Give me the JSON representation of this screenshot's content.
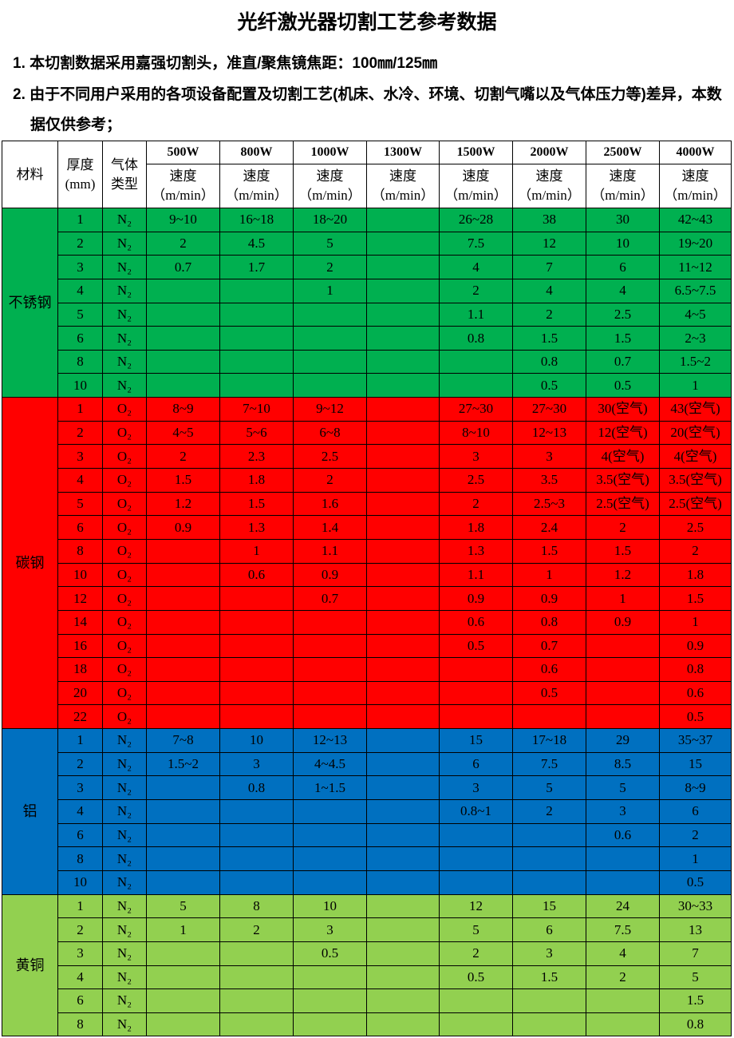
{
  "title": "光纤激光器切割工艺参考数据",
  "notes": [
    "1. 本切割数据采用嘉强切割头，准直/聚焦镜焦距：100㎜/125㎜",
    "2. 由于不同用户采用的各项设备配置及切割工艺(机床、水冷、环境、切割气嘴以及气体压力等)差异，本数据仅供参考；"
  ],
  "table": {
    "header": {
      "material": "材料",
      "thickness": [
        "厚度",
        "(mm)"
      ],
      "gas": [
        "气体",
        "类型"
      ],
      "powers": [
        "500W",
        "800W",
        "1000W",
        "1300W",
        "1500W",
        "2000W",
        "2500W",
        "4000W"
      ],
      "speed": [
        "速度",
        "（m/min）"
      ]
    },
    "groups": [
      {
        "material": "不锈钢",
        "color": "#00b050",
        "rows": [
          {
            "thickness": 1,
            "gas": "N₂",
            "speeds": [
              "9~10",
              "16~18",
              "18~20",
              null,
              "26~28",
              38,
              30,
              "42~43"
            ]
          },
          {
            "thickness": 2,
            "gas": "N₂",
            "speeds": [
              2,
              4.5,
              5,
              null,
              7.5,
              12,
              10,
              "19~20"
            ]
          },
          {
            "thickness": 3,
            "gas": "N₂",
            "speeds": [
              0.7,
              1.7,
              2,
              null,
              4,
              7,
              6,
              "11~12"
            ]
          },
          {
            "thickness": 4,
            "gas": "N₂",
            "speeds": [
              null,
              null,
              1,
              null,
              2,
              4,
              4,
              "6.5~7.5"
            ]
          },
          {
            "thickness": 5,
            "gas": "N₂",
            "speeds": [
              null,
              null,
              null,
              null,
              1.1,
              2,
              2.5,
              "4~5"
            ]
          },
          {
            "thickness": 6,
            "gas": "N₂",
            "speeds": [
              null,
              null,
              null,
              null,
              0.8,
              1.5,
              1.5,
              "2~3"
            ]
          },
          {
            "thickness": 8,
            "gas": "N₂",
            "speeds": [
              null,
              null,
              null,
              null,
              null,
              0.8,
              0.7,
              "1.5~2"
            ]
          },
          {
            "thickness": 10,
            "gas": "N₂",
            "speeds": [
              null,
              null,
              null,
              null,
              null,
              0.5,
              0.5,
              1
            ]
          }
        ]
      },
      {
        "material": "碳钢",
        "color": "#ff0000",
        "rows": [
          {
            "thickness": 1,
            "gas": "O₂",
            "speeds": [
              "8~9",
              "7~10",
              "9~12",
              null,
              "27~30",
              "27~30",
              "30(空气)",
              "43(空气)"
            ]
          },
          {
            "thickness": 2,
            "gas": "O₂",
            "speeds": [
              "4~5",
              "5~6",
              "6~8",
              null,
              "8~10",
              "12~13",
              "12(空气)",
              "20(空气)"
            ]
          },
          {
            "thickness": 3,
            "gas": "O₂",
            "speeds": [
              2,
              2.3,
              2.5,
              null,
              3,
              3,
              "4(空气)",
              "4(空气)"
            ]
          },
          {
            "thickness": 4,
            "gas": "O₂",
            "speeds": [
              1.5,
              1.8,
              2,
              null,
              2.5,
              3.5,
              "3.5(空气)",
              "3.5(空气)"
            ]
          },
          {
            "thickness": 5,
            "gas": "O₂",
            "speeds": [
              1.2,
              1.5,
              1.6,
              null,
              2,
              "2.5~3",
              "2.5(空气)",
              "2.5(空气)"
            ]
          },
          {
            "thickness": 6,
            "gas": "O₂",
            "speeds": [
              0.9,
              1.3,
              1.4,
              null,
              1.8,
              2.4,
              2,
              2.5
            ]
          },
          {
            "thickness": 8,
            "gas": "O₂",
            "speeds": [
              null,
              1,
              1.1,
              null,
              1.3,
              1.5,
              1.5,
              2
            ]
          },
          {
            "thickness": 10,
            "gas": "O₂",
            "speeds": [
              null,
              0.6,
              0.9,
              null,
              1.1,
              1,
              1.2,
              1.8
            ]
          },
          {
            "thickness": 12,
            "gas": "O₂",
            "speeds": [
              null,
              null,
              0.7,
              null,
              0.9,
              0.9,
              1,
              1.5
            ]
          },
          {
            "thickness": 14,
            "gas": "O₂",
            "speeds": [
              null,
              null,
              null,
              null,
              0.6,
              0.8,
              0.9,
              1
            ]
          },
          {
            "thickness": 16,
            "gas": "O₂",
            "speeds": [
              null,
              null,
              null,
              null,
              0.5,
              0.7,
              null,
              0.9
            ]
          },
          {
            "thickness": 18,
            "gas": "O₂",
            "speeds": [
              null,
              null,
              null,
              null,
              null,
              0.6,
              null,
              0.8
            ]
          },
          {
            "thickness": 20,
            "gas": "O₂",
            "speeds": [
              null,
              null,
              null,
              null,
              null,
              0.5,
              null,
              0.6
            ]
          },
          {
            "thickness": 22,
            "gas": "O₂",
            "speeds": [
              null,
              null,
              null,
              null,
              null,
              null,
              null,
              0.5
            ]
          }
        ]
      },
      {
        "material": "铝",
        "color": "#0070c0",
        "rows": [
          {
            "thickness": 1,
            "gas": "N₂",
            "speeds": [
              "7~8",
              10,
              "12~13",
              null,
              15,
              "17~18",
              29,
              "35~37"
            ]
          },
          {
            "thickness": 2,
            "gas": "N₂",
            "speeds": [
              "1.5~2",
              3,
              "4~4.5",
              null,
              6,
              7.5,
              8.5,
              15
            ]
          },
          {
            "thickness": 3,
            "gas": "N₂",
            "speeds": [
              null,
              0.8,
              "1~1.5",
              null,
              3,
              5,
              5,
              "8~9"
            ]
          },
          {
            "thickness": 4,
            "gas": "N₂",
            "speeds": [
              null,
              null,
              null,
              null,
              "0.8~1",
              2,
              3,
              6
            ]
          },
          {
            "thickness": 6,
            "gas": "N₂",
            "speeds": [
              null,
              null,
              null,
              null,
              null,
              null,
              0.6,
              2
            ]
          },
          {
            "thickness": 8,
            "gas": "N₂",
            "speeds": [
              null,
              null,
              null,
              null,
              null,
              null,
              null,
              1
            ]
          },
          {
            "thickness": 10,
            "gas": "N₂",
            "speeds": [
              null,
              null,
              null,
              null,
              null,
              null,
              null,
              0.5
            ]
          }
        ]
      },
      {
        "material": "黄铜",
        "color": "#92d050",
        "rows": [
          {
            "thickness": 1,
            "gas": "N₂",
            "speeds": [
              5,
              8,
              10,
              null,
              12,
              15,
              24,
              "30~33"
            ]
          },
          {
            "thickness": 2,
            "gas": "N₂",
            "speeds": [
              1,
              2,
              3,
              null,
              5,
              6,
              7.5,
              13
            ]
          },
          {
            "thickness": 3,
            "gas": "N₂",
            "speeds": [
              null,
              null,
              0.5,
              null,
              2,
              3,
              4,
              7
            ]
          },
          {
            "thickness": 4,
            "gas": "N₂",
            "speeds": [
              null,
              null,
              null,
              null,
              0.5,
              1.5,
              2,
              5
            ]
          },
          {
            "thickness": 6,
            "gas": "N₂",
            "speeds": [
              null,
              null,
              null,
              null,
              null,
              null,
              null,
              1.5
            ]
          },
          {
            "thickness": 8,
            "gas": "N₂",
            "speeds": [
              null,
              null,
              null,
              null,
              null,
              null,
              null,
              0.8
            ]
          }
        ]
      }
    ]
  }
}
